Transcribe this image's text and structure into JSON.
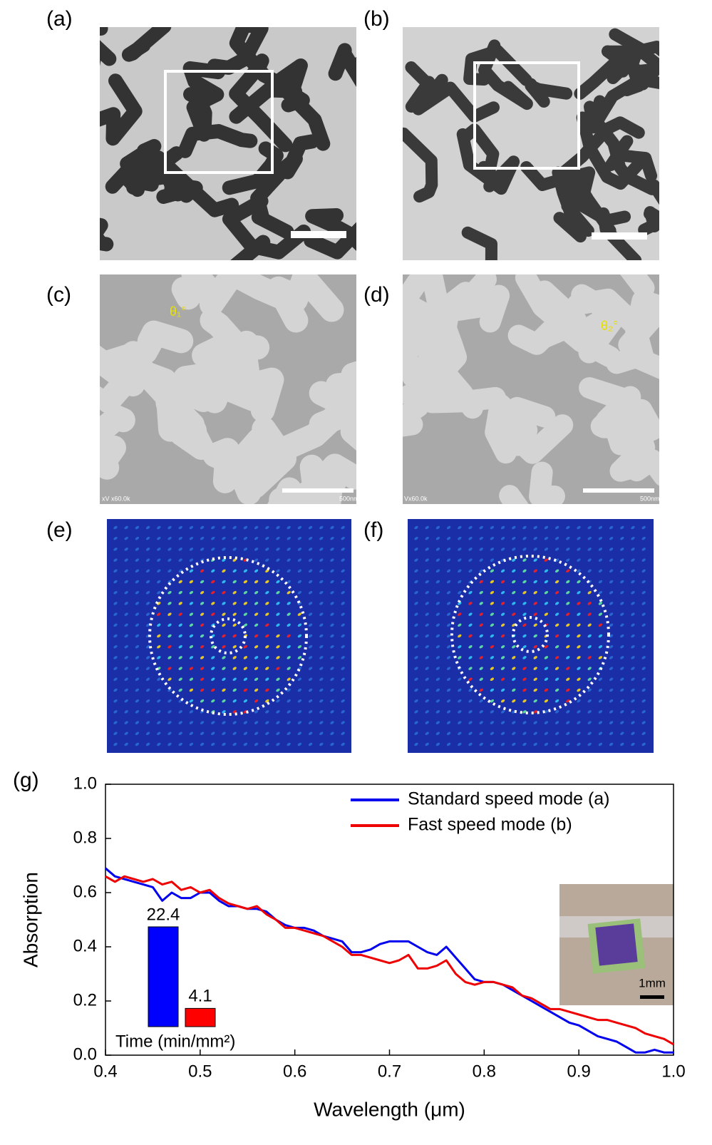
{
  "panels": {
    "labels": [
      "(a)",
      "(b)",
      "(c)",
      "(d)",
      "(e)",
      "(f)",
      "(g)"
    ],
    "sem_info": [
      "xV x60.0k",
      "Vx60.0k"
    ],
    "scale_bar": "500nm",
    "angles": [
      "θ₁°",
      "θ₂°"
    ],
    "inset_scale": "1mm"
  },
  "chart_data": [
    {
      "type": "line",
      "xlabel": "Wavelength (μm)",
      "ylabel": "Absorption",
      "xlim": [
        0.4,
        1
      ],
      "xticks": [
        0.4,
        0.5,
        0.6,
        0.7,
        0.8,
        0.9,
        {
          "value": 1,
          "label": "1.0"
        }
      ],
      "ylim": [
        0,
        1
      ],
      "yticks": [
        {
          "value": 0,
          "label": "0.0"
        },
        0.2,
        0.4,
        0.6,
        0.8,
        {
          "value": 1,
          "label": "1.0"
        }
      ],
      "legend": "upper right",
      "x": [
        0.4,
        0.41,
        0.42,
        0.43,
        0.44,
        0.45,
        0.46,
        0.47,
        0.48,
        0.49,
        0.5,
        0.51,
        0.52,
        0.53,
        0.54,
        0.55,
        0.56,
        0.57,
        0.58,
        0.59,
        0.6,
        0.61,
        0.62,
        0.63,
        0.64,
        0.65,
        0.66,
        0.67,
        0.68,
        0.69,
        0.7,
        0.71,
        0.72,
        0.73,
        0.74,
        0.75,
        0.76,
        0.77,
        0.78,
        0.79,
        0.8,
        0.81,
        0.82,
        0.83,
        0.84,
        0.85,
        0.86,
        0.87,
        0.88,
        0.89,
        0.9,
        0.91,
        0.92,
        0.93,
        0.94,
        0.95,
        0.96,
        0.97,
        0.98,
        0.99,
        1
      ],
      "series": [
        {
          "name": "Standard speed mode (a)",
          "color": "#0000ee",
          "values": [
            0.69,
            0.66,
            0.65,
            0.64,
            0.63,
            0.62,
            0.57,
            0.6,
            0.58,
            0.58,
            0.6,
            0.6,
            0.57,
            0.55,
            0.55,
            0.54,
            0.54,
            0.53,
            0.5,
            0.48,
            0.47,
            0.47,
            0.46,
            0.44,
            0.43,
            0.42,
            0.38,
            0.38,
            0.39,
            0.41,
            0.42,
            0.42,
            0.42,
            0.4,
            0.38,
            0.37,
            0.4,
            0.36,
            0.32,
            0.28,
            0.27,
            0.27,
            0.26,
            0.24,
            0.22,
            0.2,
            0.18,
            0.16,
            0.14,
            0.12,
            0.11,
            0.09,
            0.07,
            0.06,
            0.05,
            0.03,
            0.01,
            0.01,
            0.02,
            0.01,
            0.01
          ]
        },
        {
          "name": "Fast speed mode (b)",
          "color": "#ee0000",
          "values": [
            0.66,
            0.64,
            0.66,
            0.65,
            0.64,
            0.65,
            0.63,
            0.64,
            0.61,
            0.62,
            0.6,
            0.61,
            0.58,
            0.56,
            0.55,
            0.54,
            0.55,
            0.52,
            0.5,
            0.47,
            0.47,
            0.46,
            0.45,
            0.44,
            0.42,
            0.4,
            0.37,
            0.37,
            0.36,
            0.35,
            0.34,
            0.35,
            0.37,
            0.32,
            0.32,
            0.33,
            0.35,
            0.3,
            0.27,
            0.26,
            0.27,
            0.27,
            0.26,
            0.25,
            0.22,
            0.21,
            0.19,
            0.17,
            0.17,
            0.16,
            0.15,
            0.14,
            0.13,
            0.13,
            0.12,
            0.11,
            0.1,
            0.08,
            0.07,
            0.06,
            0.04
          ]
        }
      ]
    },
    {
      "type": "bar",
      "xlabel": "Time (min/mm²)",
      "values": [
        22.4,
        4.1
      ],
      "colors": [
        "#0000ff",
        "#ff0000"
      ]
    }
  ]
}
